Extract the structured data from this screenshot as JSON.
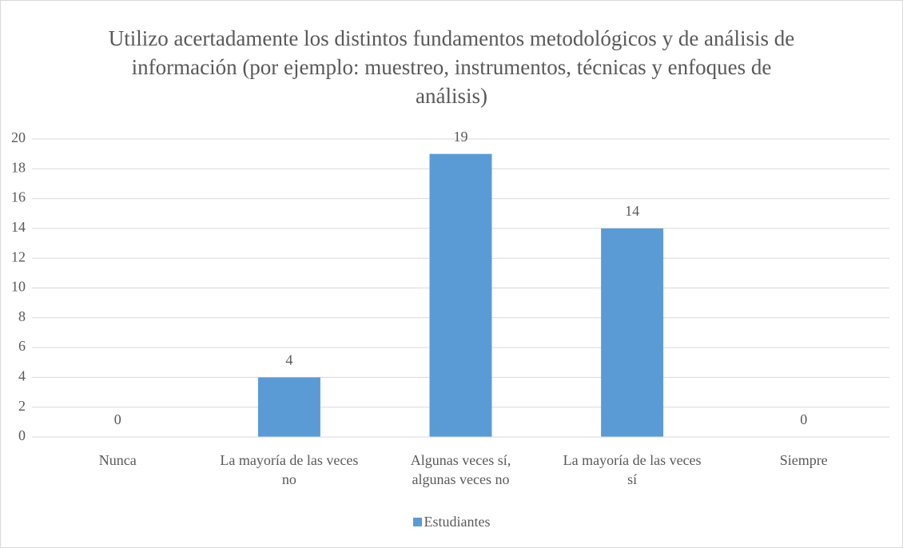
{
  "chart_data": {
    "type": "bar",
    "title": "Utilizo acertadamente los distintos fundamentos metodológicos y de análisis de información (por ejemplo: muestreo, instrumentos, técnicas y enfoques de análisis)",
    "categories": [
      "Nunca",
      "La mayoría de las veces no",
      "Algunas veces sí, algunas veces no",
      "La mayoría de las veces sí",
      "Siempre"
    ],
    "series": [
      {
        "name": "Estudiantes",
        "color": "#5b9bd5",
        "values": [
          0,
          4,
          19,
          14,
          0
        ]
      }
    ],
    "ylim": [
      0,
      20
    ],
    "yticks": [
      0,
      2,
      4,
      6,
      8,
      10,
      12,
      14,
      16,
      18,
      20
    ],
    "grid": true,
    "legend": "bottom"
  }
}
